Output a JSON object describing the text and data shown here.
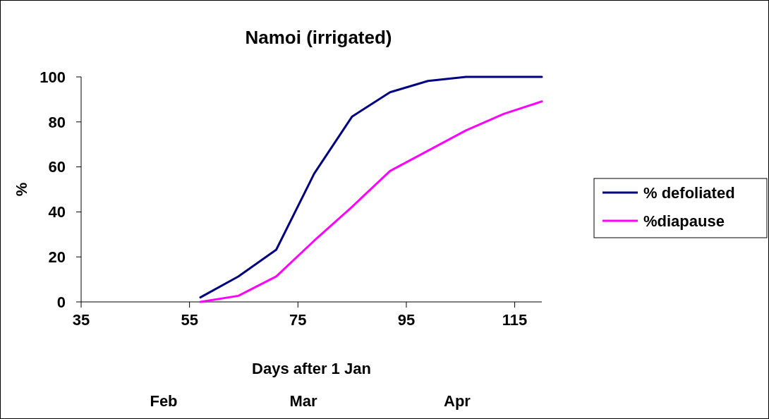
{
  "chart_data": {
    "type": "line",
    "title": "Namoi (irrigated)",
    "xlabel": "Days after 1 Jan",
    "ylabel": "%",
    "annotations": [
      "Feb",
      "Mar",
      "Apr"
    ],
    "x": [
      57,
      64,
      71,
      78,
      85,
      92,
      99,
      106,
      113,
      120
    ],
    "series": [
      {
        "name": "% defoliated",
        "color": "#000080",
        "values": [
          2,
          11.3,
          23.2,
          57,
          82.4,
          93.2,
          98.2,
          100,
          100,
          100
        ]
      },
      {
        "name": "%diapause",
        "color": "#ff00ff",
        "values": [
          0,
          2.7,
          11.3,
          27.2,
          42.3,
          58.2,
          67.2,
          76.2,
          83.6,
          89.1
        ]
      }
    ],
    "xlim": [
      35,
      120
    ],
    "xticks": [
      35,
      55,
      75,
      95,
      115
    ],
    "ylim": [
      0,
      100
    ],
    "yticks": [
      0,
      20,
      40,
      60,
      80,
      100
    ],
    "grid": false,
    "legend": "right",
    "marker": "none",
    "line_style": "solid"
  }
}
